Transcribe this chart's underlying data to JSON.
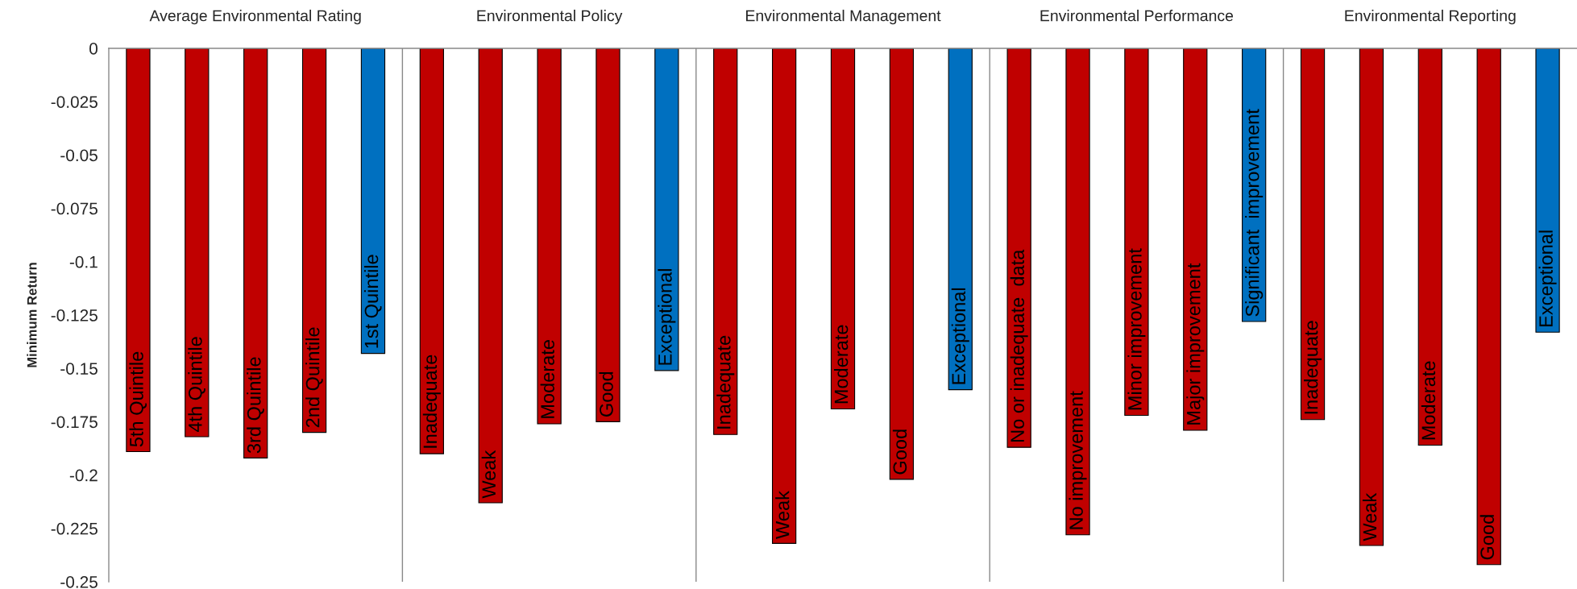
{
  "chart_data": {
    "type": "bar",
    "ylabel": "Minimum Return",
    "annotations": [
      "Average Environmental Rating",
      "Environmental Policy",
      "Environmental Management",
      "Environmental Performance",
      "Environmental Reporting"
    ],
    "categories": [
      "5th Quintile",
      "4th Quintile",
      "3rd Quintile",
      "2nd Quintile",
      "1st Quintile",
      "Inadequate",
      "Weak",
      "Moderate",
      "Good",
      "Exceptional",
      "Inadequate",
      "Weak",
      "Moderate",
      "Good",
      "Exceptional",
      "No or inadequate  data",
      "No improvement",
      "Minor improvement",
      "Major improvement",
      "Significant  improvement",
      "Inadequate",
      "Weak",
      "Moderate",
      "Good",
      "Exceptional"
    ],
    "values": [
      -0.189,
      -0.182,
      -0.192,
      -0.18,
      -0.143,
      -0.19,
      -0.213,
      -0.176,
      -0.175,
      -0.151,
      -0.181,
      -0.232,
      -0.169,
      -0.202,
      -0.16,
      -0.187,
      -0.228,
      -0.172,
      -0.179,
      -0.128,
      -0.174,
      -0.233,
      -0.186,
      -0.242,
      -0.133
    ],
    "colors": [
      "#c00000",
      "#c00000",
      "#c00000",
      "#c00000",
      "#0070c0",
      "#c00000",
      "#c00000",
      "#c00000",
      "#c00000",
      "#0070c0",
      "#c00000",
      "#c00000",
      "#c00000",
      "#c00000",
      "#0070c0",
      "#c00000",
      "#c00000",
      "#c00000",
      "#c00000",
      "#0070c0",
      "#c00000",
      "#c00000",
      "#c00000",
      "#c00000",
      "#0070c0"
    ],
    "ylim": [
      -0.25,
      0
    ],
    "yticks": [
      0,
      -0.025,
      -0.05,
      -0.075,
      -0.1,
      -0.125,
      -0.15,
      -0.175,
      -0.2,
      -0.225,
      -0.25
    ],
    "grid": false,
    "legend": false
  }
}
